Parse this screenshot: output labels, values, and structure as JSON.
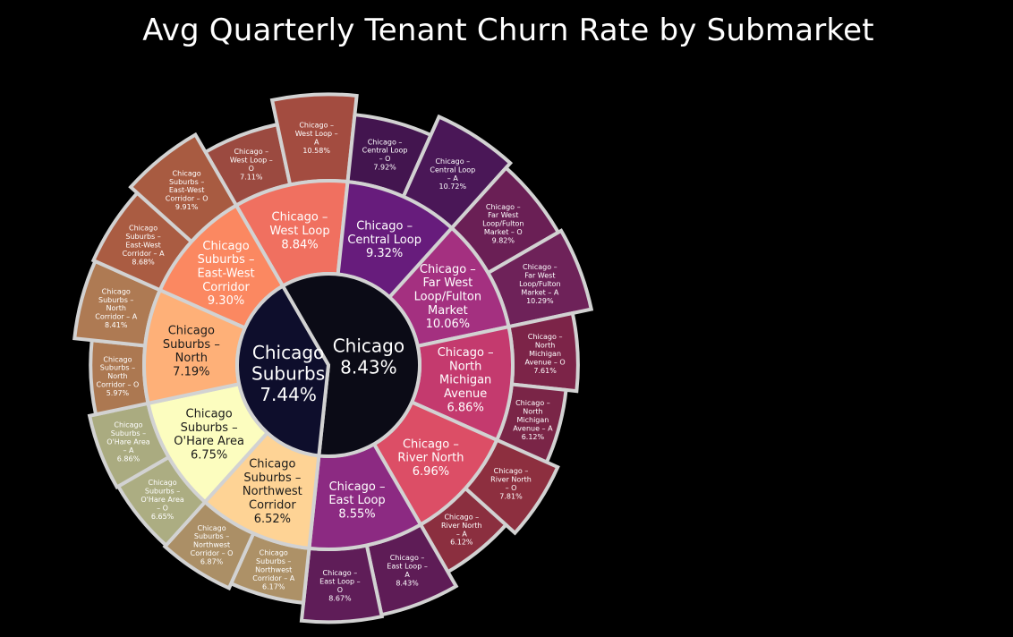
{
  "chart_data": {
    "type": "sunburst",
    "title": "Avg Quarterly Tenant Churn Rate by Submarket",
    "colors": {
      "chicago": "#0b0b16",
      "chicago_suburbs": "#0e0e2c",
      "border": "#d2d2d2",
      "background": "#000000"
    },
    "roots": [
      {
        "id": "chicago",
        "name": "Chicago",
        "value_label": "8.43%",
        "value": 8.43,
        "children": [
          {
            "id": "west-loop",
            "name": "Chicago – West Loop",
            "value_label": "8.84%",
            "value": 8.84,
            "color": "#f07060",
            "children": [
              {
                "id": "west-loop-o",
                "name": "Chicago – West Loop – O",
                "value_label": "7.11%",
                "value": 7.11,
                "color": "#9b4a40"
              },
              {
                "id": "west-loop-a",
                "name": "Chicago – West Loop – A",
                "value_label": "10.58%",
                "value": 10.58,
                "color": "#a34c40"
              }
            ]
          },
          {
            "id": "central-loop",
            "name": "Chicago – Central Loop",
            "value_label": "9.32%",
            "value": 9.32,
            "color": "#671c7c",
            "children": [
              {
                "id": "central-loop-o",
                "name": "Chicago – Central Loop – O",
                "value_label": "7.92%",
                "value": 7.92,
                "color": "#43154f"
              },
              {
                "id": "central-loop-a",
                "name": "Chicago – Central Loop – A",
                "value_label": "10.72%",
                "value": 10.72,
                "color": "#4a1757"
              }
            ]
          },
          {
            "id": "far-west-loop",
            "name": "Chicago – Far West Loop/Fulton Market",
            "value_label": "10.06%",
            "value": 10.06,
            "color": "#a43080",
            "children": [
              {
                "id": "far-west-loop-o",
                "name": "Chicago – Far West Loop/Fulton Market – O",
                "value_label": "9.82%",
                "value": 9.82,
                "color": "#6a1f55"
              },
              {
                "id": "far-west-loop-a",
                "name": "Chicago – Far West Loop/Fulton Market – A",
                "value_label": "10.29%",
                "value": 10.29,
                "color": "#6e2259"
              }
            ]
          },
          {
            "id": "north-michigan",
            "name": "Chicago – North Michigan Avenue",
            "value_label": "6.86%",
            "value": 6.86,
            "color": "#c43a6e",
            "children": [
              {
                "id": "north-michigan-o",
                "name": "Chicago – North Michigan Avenue – O",
                "value_label": "7.61%",
                "value": 7.61,
                "color": "#7c2448"
              },
              {
                "id": "north-michigan-a",
                "name": "Chicago – North Michigan Avenue – A",
                "value_label": "6.12%",
                "value": 6.12,
                "color": "#7a2547"
              }
            ]
          },
          {
            "id": "river-north",
            "name": "Chicago – River North",
            "value_label": "6.96%",
            "value": 6.96,
            "color": "#dc4e66",
            "children": [
              {
                "id": "river-north-o",
                "name": "Chicago – River North – O",
                "value_label": "7.81%",
                "value": 7.81,
                "color": "#8d2f3f"
              },
              {
                "id": "river-north-a",
                "name": "Chicago – River North – A",
                "value_label": "6.12%",
                "value": 6.12,
                "color": "#8b2f3f"
              }
            ]
          },
          {
            "id": "east-loop",
            "name": "Chicago – East Loop",
            "value_label": "8.55%",
            "value": 8.55,
            "color": "#8c2a82",
            "children": [
              {
                "id": "east-loop-a",
                "name": "Chicago – East Loop – A",
                "value_label": "8.43%",
                "value": 8.43,
                "color": "#5e1c56"
              },
              {
                "id": "east-loop-o",
                "name": "Chicago – East Loop – O",
                "value_label": "8.67%",
                "value": 8.67,
                "color": "#5f1d58"
              }
            ]
          }
        ]
      },
      {
        "id": "chicago-suburbs",
        "name": "Chicago Suburbs",
        "value_label": "7.44%",
        "value": 7.44,
        "children": [
          {
            "id": "northwest-corridor",
            "name": "Chicago Suburbs – Northwest Corridor",
            "value_label": "6.52%",
            "value": 6.52,
            "color": "#fed395",
            "children": [
              {
                "id": "northwest-corridor-a",
                "name": "Chicago Suburbs – Northwest Corridor – A",
                "value_label": "6.17%",
                "value": 6.17,
                "color": "#ad9167"
              },
              {
                "id": "northwest-corridor-o",
                "name": "Chicago Suburbs – Northwest Corridor – O",
                "value_label": "6.87%",
                "value": 6.87,
                "color": "#ab8f66"
              }
            ]
          },
          {
            "id": "ohare-area",
            "name": "Chicago Suburbs – O'Hare Area",
            "value_label": "6.75%",
            "value": 6.75,
            "color": "#fcfdbf",
            "children": [
              {
                "id": "ohare-area-o",
                "name": "Chicago Suburbs – O'Hare Area – O",
                "value_label": "6.65%",
                "value": 6.65,
                "color": "#acad82"
              },
              {
                "id": "ohare-area-a",
                "name": "Chicago Suburbs – O'Hare Area – A",
                "value_label": "6.86%",
                "value": 6.86,
                "color": "#aaab80"
              }
            ]
          },
          {
            "id": "north",
            "name": "Chicago Suburbs – North",
            "value_label": "7.19%",
            "value": 7.19,
            "color": "#feb078",
            "children": [
              {
                "id": "north-o",
                "name": "Chicago Suburbs – North Corridor – O",
                "value_label": "5.97%",
                "value": 5.97,
                "color": "#ac7851"
              },
              {
                "id": "north-a",
                "name": "Chicago Suburbs – North Corridor – A",
                "value_label": "8.41%",
                "value": 8.41,
                "color": "#ae7a53"
              }
            ]
          },
          {
            "id": "east-west-corridor",
            "name": "Chicago Suburbs – East-West Corridor",
            "value_label": "9.30%",
            "value": 9.3,
            "color": "#fb8861",
            "children": [
              {
                "id": "east-west-corridor-a",
                "name": "Chicago Suburbs – East-West Corridor – A",
                "value_label": "8.68%",
                "value": 8.68,
                "color": "#aa5c42"
              },
              {
                "id": "east-west-corridor-o",
                "name": "Chicago Suburbs – East-West Corridor – O",
                "value_label": "9.91%",
                "value": 9.91,
                "color": "#a85b41"
              }
            ]
          }
        ]
      }
    ]
  }
}
